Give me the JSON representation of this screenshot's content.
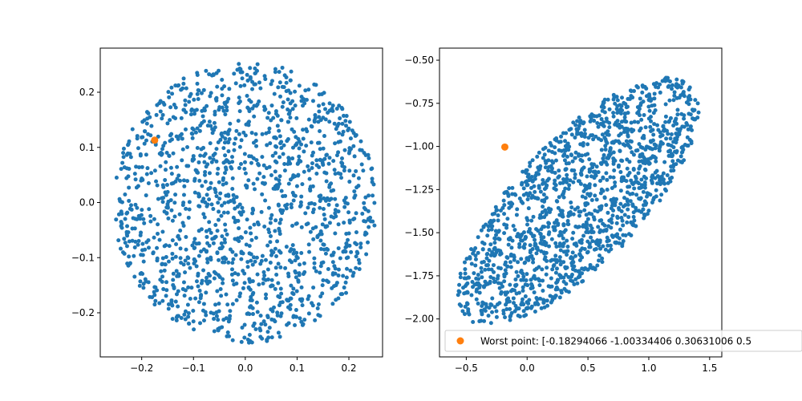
{
  "chart_data": [
    {
      "type": "scatter",
      "xlim": [
        -0.28,
        0.265
      ],
      "ylim": [
        -0.28,
        0.28
      ],
      "x_ticks": [
        -0.2,
        -0.1,
        0.0,
        0.1,
        0.2
      ],
      "x_tick_labels": [
        "−0.2",
        "−0.1",
        "0.0",
        "0.1",
        "0.2"
      ],
      "y_ticks": [
        -0.2,
        -0.1,
        0.0,
        0.1,
        0.2
      ],
      "y_tick_labels": [
        "−0.2",
        "−0.1",
        "0.0",
        "0.1",
        "0.2"
      ],
      "grid": false,
      "series": [
        {
          "color": "#1f77b4",
          "marker_size": "small",
          "distribution": {
            "shape": "disk",
            "center": [
              0.0,
              0.0
            ],
            "radius": 0.255,
            "count": 1500
          }
        },
        {
          "color": "#ff7f0e",
          "marker_size": "large",
          "points": [
            {
              "x": -0.175,
              "y": 0.113
            }
          ]
        }
      ]
    },
    {
      "type": "scatter",
      "xlim": [
        -0.72,
        1.6
      ],
      "ylim": [
        -2.22,
        -0.43
      ],
      "x_ticks": [
        -0.5,
        0.0,
        0.5,
        1.0,
        1.5
      ],
      "x_tick_labels": [
        "−0.5",
        "0.0",
        "0.5",
        "1.0",
        "1.5"
      ],
      "y_ticks": [
        -2.0,
        -1.75,
        -1.5,
        -1.25,
        -1.0,
        -0.75,
        -0.5
      ],
      "y_tick_labels": [
        "−2.00",
        "−1.75",
        "−1.50",
        "−1.25",
        "−1.00",
        "−0.75",
        "−0.50"
      ],
      "grid": false,
      "legend": {
        "location": "bottom-right",
        "entries": [
          {
            "label": "Worst point: [-0.18294066 -1.00334406  0.30631006  0.5",
            "color": "#ff7f0e"
          }
        ]
      },
      "series": [
        {
          "color": "#1f77b4",
          "marker_size": "small",
          "distribution": {
            "shape": "ellipse",
            "center": [
              0.42,
              -1.32
            ],
            "semi_axis_major": 1.15,
            "semi_axis_minor": 0.42,
            "tilt_degrees": 33,
            "count": 1500
          }
        },
        {
          "color": "#ff7f0e",
          "marker_size": "large",
          "points": [
            {
              "x": -0.18294066,
              "y": -1.00334406
            }
          ]
        }
      ]
    }
  ]
}
